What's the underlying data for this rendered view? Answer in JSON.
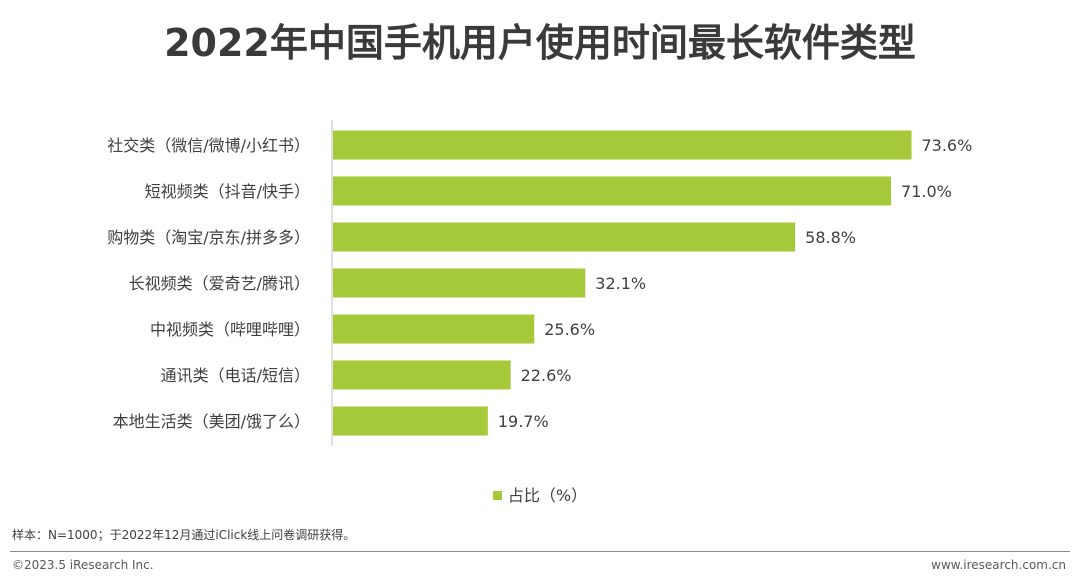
{
  "chart_data": {
    "type": "bar",
    "orientation": "horizontal",
    "title": "2022年中国手机用户使用时间最长软件类型",
    "categories": [
      "社交类（微信/微博/小红书）",
      "短视频类（抖音/快手）",
      "购物类（淘宝/京东/拼多多）",
      "长视频类（爱奇艺/腾讯）",
      "中视频类（哔哩哔哩）",
      "通讯类（电话/短信）",
      "本地生活类（美团/饿了么）"
    ],
    "series": [
      {
        "name": "占比（%）",
        "values": [
          73.6,
          71.0,
          58.8,
          32.1,
          25.6,
          22.6,
          19.7
        ],
        "labels": [
          "73.6%",
          "71.0%",
          "58.8%",
          "32.1%",
          "25.6%",
          "22.6%",
          "19.7%"
        ],
        "color": "#a6c93a"
      }
    ],
    "xlim": [
      0,
      100
    ],
    "grid": false,
    "legend_position": "bottom"
  },
  "note": "样本：N=1000；于2022年12月通过iClick线上问卷调研获得。",
  "footer": {
    "copyright": "©2023.5 iResearch Inc.",
    "website": "www.iresearch.com.cn"
  },
  "colors": {
    "bar": "#a6c93a",
    "axis": "#bfbfbf",
    "text": "#404040"
  }
}
